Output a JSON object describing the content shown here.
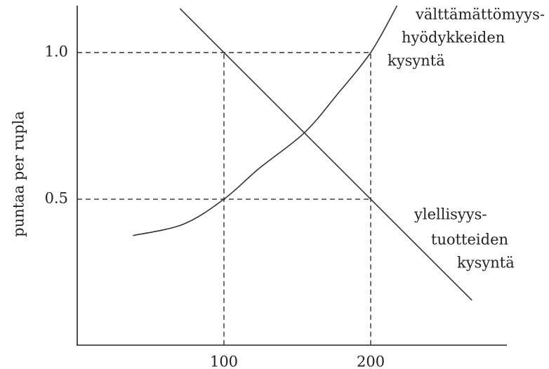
{
  "chart_data": {
    "type": "line",
    "ylabel": "puntaa per rupla",
    "xlim": [
      0,
      293
    ],
    "ylim": [
      0,
      1.16
    ],
    "xticks": [
      100,
      200
    ],
    "yticks": [
      0.5,
      {
        "value": 1,
        "label": "1.0"
      }
    ],
    "dashed_guides": true,
    "series": [
      {
        "name": [
          "välttämättömyys-",
          "hyödykkeiden",
          "kysyntä"
        ],
        "color": "#333333",
        "x": [
          38,
          72,
          100,
          124,
          154.5,
          177,
          200,
          218
        ],
        "values": [
          0.376,
          0.414,
          0.5,
          0.605,
          0.725,
          0.856,
          1.0,
          1.16
        ]
      },
      {
        "name": [
          "ylellisyys-",
          "tuotteiden",
          "kysyntä"
        ],
        "color": "#333333",
        "x": [
          70,
          100,
          200,
          269
        ],
        "values": [
          1.15,
          1.0,
          0.5,
          0.155
        ]
      }
    ]
  }
}
